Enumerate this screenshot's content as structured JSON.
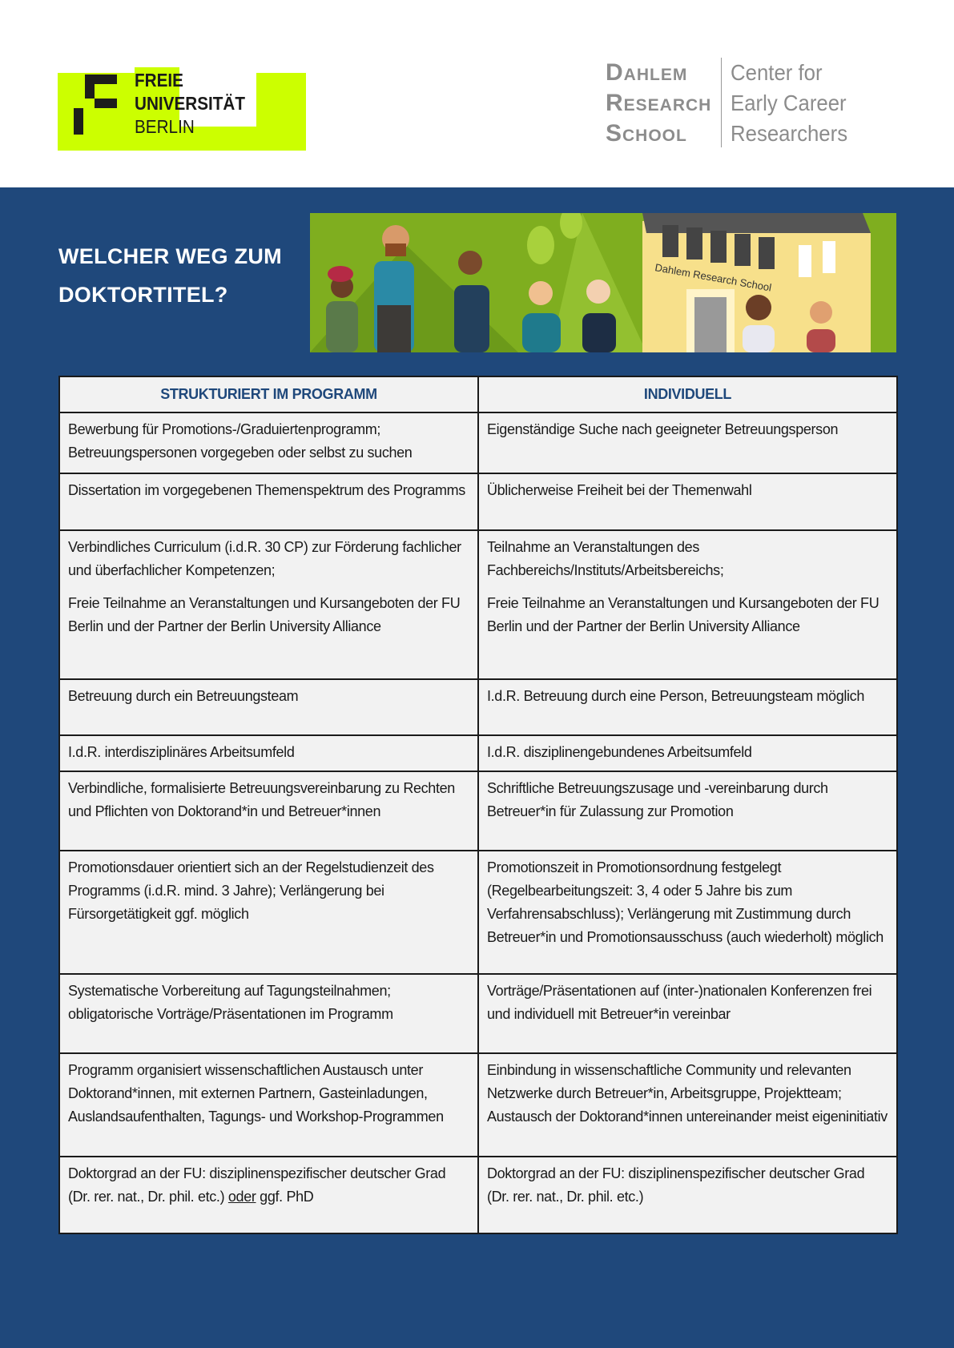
{
  "header": {
    "fu_logo": {
      "line1": "FREIE",
      "line2": "UNIVERSITÄT",
      "line3": "BERLIN"
    },
    "drs_logo": {
      "left": [
        "Dahlem",
        "Research",
        "School"
      ],
      "right": [
        "Center for",
        "Early Career",
        "Researchers"
      ]
    },
    "accent": "#ccff00",
    "band_color": "#1f487b"
  },
  "title": {
    "line1": "WELCHER WEG ZUM",
    "line2": "DOKTORTITEL?"
  },
  "banner": {
    "building_sign": "Dahlem Research School"
  },
  "table": {
    "headers": [
      "STRUKTURIERT IM PROGRAMM",
      "INDIVIDUELL"
    ],
    "rows": [
      {
        "left": [
          "Bewerbung für Promotions-/Graduiertenprogramm; Betreuungspersonen vorgegeben oder selbst zu suchen"
        ],
        "right": [
          "Eigenständige Suche nach geeigneter Betreuungsperson"
        ]
      },
      {
        "left": [
          "Dissertation im vorgegebenen Themenspektrum des Programms"
        ],
        "right": [
          "Üblicherweise Freiheit bei der Themenwahl"
        ]
      },
      {
        "left": [
          "Verbindliches Curriculum (i.d.R. 30 CP) zur Förderung fachlicher und überfachlicher Kompetenzen;",
          "Freie Teilnahme an Veranstaltungen und Kursangeboten der FU Berlin und der Partner der Berlin University Alliance"
        ],
        "right": [
          "Teilnahme an Veranstaltungen des Fachbereichs/Instituts/Arbeitsbereichs;",
          "Freie Teilnahme an Veranstaltungen und Kursangeboten der FU Berlin und der Partner der Berlin University Alliance"
        ]
      },
      {
        "left": [
          "Betreuung durch ein Betreuungsteam"
        ],
        "right": [
          "I.d.R. Betreuung durch eine Person, Betreuungsteam möglich"
        ]
      },
      {
        "left": [
          "I.d.R. interdisziplinäres Arbeitsumfeld"
        ],
        "right": [
          "I.d.R. disziplinengebundenes Arbeitsumfeld"
        ]
      },
      {
        "left": [
          "Verbindliche, formalisierte Betreuungsvereinbarung zu Rechten und Pflichten von Doktorand*in und Betreuer*innen"
        ],
        "right": [
          "Schriftliche Betreuungszusage und -vereinbarung durch Betreuer*in für Zulassung zur Promotion"
        ]
      },
      {
        "left": [
          "Promotionsdauer orientiert sich an der Regelstudienzeit des Programms (i.d.R. mind. 3 Jahre); Verlängerung bei Fürsorgetätigkeit ggf. möglich"
        ],
        "right": [
          "Promotionszeit in Promotionsordnung festgelegt (Regelbearbeitungszeit: 3, 4 oder 5 Jahre bis zum Verfahrensabschluss); Verlängerung mit Zustimmung durch Betreuer*in und Promotionsausschuss (auch wiederholt) möglich"
        ]
      },
      {
        "left": [
          "Systematische Vorbereitung auf Tagungsteilnahmen; obligatorische Vorträge/Präsentationen im Programm"
        ],
        "right": [
          "Vorträge/Präsentationen auf (inter-)nationalen Konferenzen frei und individuell mit Betreuer*in vereinbar"
        ]
      },
      {
        "left": [
          "Programm organisiert wissenschaftlichen Austausch unter Doktorand*innen, mit externen Partnern, Gasteinladungen, Auslandsaufenthalten, Tagungs- und Workshop-Programmen"
        ],
        "right": [
          "Einbindung in wissenschaftliche Community und relevanten Netzwerke durch Betreuer*in, Arbeitsgruppe, Projektteam; Austausch der Doktorand*innen untereinander meist eigeninitiativ"
        ]
      }
    ],
    "last_row": {
      "left_before": "Doktorgrad an der FU: disziplinenspezifischer deutscher Grad (Dr. rer. nat., Dr. phil. etc.) ",
      "left_underlined": "oder",
      "left_after": " ggf. PhD",
      "right": "Doktorgrad an der FU: disziplinenspezifischer deutscher Grad (Dr. rer. nat., Dr. phil. etc.)"
    }
  }
}
